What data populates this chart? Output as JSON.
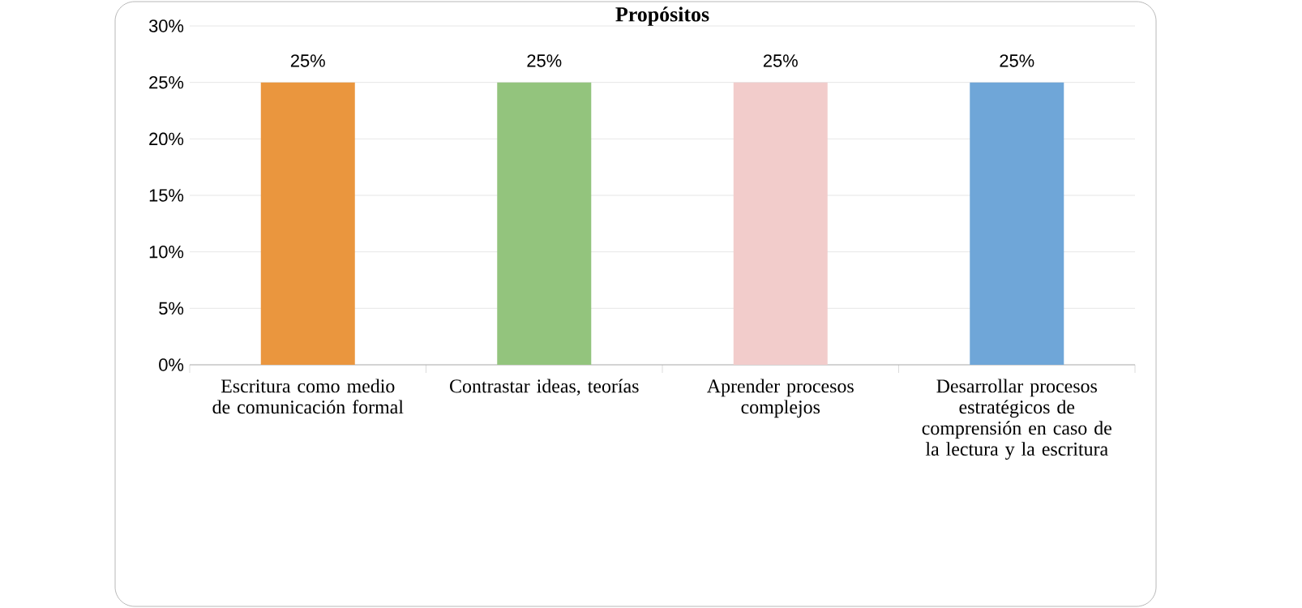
{
  "chart_data": {
    "type": "bar",
    "title": "Propósitos",
    "categories": [
      "Escritura como medio de comunicación formal",
      "Contrastar ideas, teorías",
      "Aprender procesos complejos",
      "Desarrollar procesos estratégicos de comprensión en caso de la lectura y la escritura"
    ],
    "values": [
      25,
      25,
      25,
      25
    ],
    "colors": [
      "#ea963e",
      "#93c47d",
      "#f2cccb",
      "#6fa6d8"
    ],
    "value_labels": [
      "25%",
      "25%",
      "25%",
      "25%"
    ],
    "ylim": [
      0,
      30
    ],
    "yticks": [
      {
        "value": 0,
        "label": "0%"
      },
      {
        "value": 5,
        "label": "5%"
      },
      {
        "value": 10,
        "label": "10%"
      },
      {
        "value": 15,
        "label": "15%"
      },
      {
        "value": 20,
        "label": "20%"
      },
      {
        "value": 25,
        "label": "25%"
      },
      {
        "value": 30,
        "label": "30%"
      }
    ],
    "grid": "y"
  }
}
